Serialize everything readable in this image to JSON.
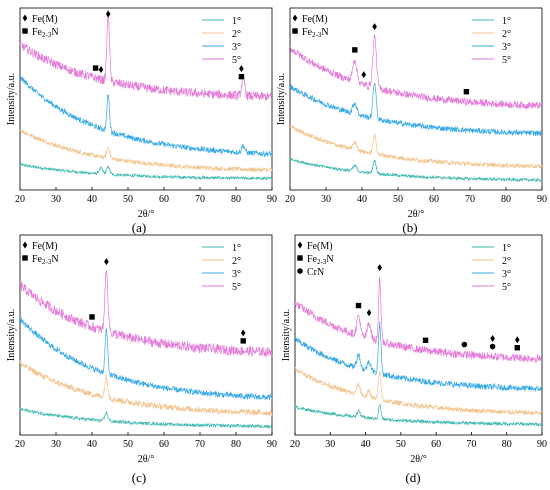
{
  "figure": {
    "subplot_labels": [
      "(a)",
      "(b)",
      "(c)",
      "(d)"
    ]
  },
  "legend_markers": {
    "fe_m": "Fe(M)",
    "fe23n_main": "Fe",
    "fe23n_sub": "2-3",
    "fe23n_tail": "N",
    "crn": "CrN"
  },
  "series_colors": {
    "1°": "#3fb8b0",
    "2°": "#f2c38c",
    "3°": "#35a8e6",
    "5°": "#e47ad8"
  },
  "marker_color": "#000000",
  "chart_data": [
    {
      "type": "line",
      "title": "",
      "subplot": "(a)",
      "xlabel": "2θ/°",
      "ylabel": "Intensity/a.u.",
      "xlim": [
        20,
        90
      ],
      "xticks": [
        20,
        30,
        40,
        50,
        60,
        70,
        80,
        90
      ],
      "grid": false,
      "legend_position": "top-right",
      "phase_legend": [
        "Fe(M)",
        "Fe2-3N"
      ],
      "peak_markers": [
        {
          "x": 41,
          "phase": "Fe2-3N"
        },
        {
          "x": 42.5,
          "phase": "Fe(M)"
        },
        {
          "x": 44.5,
          "phase": "Fe(M)"
        },
        {
          "x": 81.5,
          "phase": "Fe2-3N"
        },
        {
          "x": 81.5,
          "phase": "Fe(M)"
        }
      ],
      "series": [
        {
          "name": "1°",
          "baseline": [
            0.14,
            0.06
          ],
          "noise": 0.008,
          "peaks": [
            [
              42.5,
              0.03,
              0.7
            ],
            [
              44.5,
              0.04,
              0.6
            ]
          ]
        },
        {
          "name": "2°",
          "baseline": [
            0.33,
            0.1
          ],
          "noise": 0.012,
          "peaks": [
            [
              44.5,
              0.06,
              0.6
            ]
          ]
        },
        {
          "name": "3°",
          "baseline": [
            0.62,
            0.18
          ],
          "noise": 0.015,
          "peaks": [
            [
              44.5,
              0.2,
              0.5
            ],
            [
              82,
              0.04,
              0.6
            ]
          ]
        },
        {
          "name": "5°",
          "baseline": [
            0.8,
            0.5
          ],
          "noise": 0.025,
          "peaks": [
            [
              44.5,
              0.38,
              0.5
            ],
            [
              82,
              0.1,
              0.6
            ]
          ]
        }
      ]
    },
    {
      "type": "line",
      "title": "",
      "subplot": "(b)",
      "xlabel": "2θ/°",
      "ylabel": "Intensity/a.u.",
      "xlim": [
        20,
        90
      ],
      "xticks": [
        20,
        30,
        40,
        50,
        60,
        70,
        80,
        90
      ],
      "grid": false,
      "legend_position": "top-right",
      "phase_legend": [
        "Fe(M)",
        "Fe2-3N"
      ],
      "peak_markers": [
        {
          "x": 38,
          "phase": "Fe2-3N"
        },
        {
          "x": 40.5,
          "phase": "Fe(M)"
        },
        {
          "x": 43.5,
          "phase": "Fe(M)"
        },
        {
          "x": 69,
          "phase": "Fe2-3N"
        }
      ],
      "series": [
        {
          "name": "1°",
          "baseline": [
            0.17,
            0.05
          ],
          "noise": 0.008,
          "peaks": [
            [
              38,
              0.03,
              0.8
            ],
            [
              43.5,
              0.07,
              0.6
            ]
          ]
        },
        {
          "name": "2°",
          "baseline": [
            0.35,
            0.12
          ],
          "noise": 0.012,
          "peaks": [
            [
              38,
              0.04,
              0.8
            ],
            [
              43.5,
              0.1,
              0.6
            ]
          ]
        },
        {
          "name": "3°",
          "baseline": [
            0.57,
            0.3
          ],
          "noise": 0.015,
          "peaks": [
            [
              38,
              0.06,
              0.8
            ],
            [
              43.5,
              0.2,
              0.6
            ]
          ]
        },
        {
          "name": "5°",
          "baseline": [
            0.78,
            0.45
          ],
          "noise": 0.02,
          "peaks": [
            [
              38,
              0.12,
              0.8
            ],
            [
              43.5,
              0.28,
              0.7
            ]
          ]
        }
      ]
    },
    {
      "type": "line",
      "title": "",
      "subplot": "(c)",
      "xlabel": "2θ/°",
      "ylabel": "Intensity/a.u.",
      "xlim": [
        20,
        90
      ],
      "xticks": [
        20,
        30,
        40,
        50,
        60,
        70,
        80,
        90
      ],
      "grid": false,
      "legend_position": "top-right",
      "phase_legend": [
        "Fe(M)",
        "Fe2-3N"
      ],
      "peak_markers": [
        {
          "x": 40,
          "phase": "Fe2-3N"
        },
        {
          "x": 44,
          "phase": "Fe(M)"
        },
        {
          "x": 82,
          "phase": "Fe2-3N"
        },
        {
          "x": 82,
          "phase": "Fe(M)"
        }
      ],
      "series": [
        {
          "name": "1°",
          "baseline": [
            0.13,
            0.04
          ],
          "noise": 0.008,
          "peaks": [
            [
              44,
              0.04,
              0.6
            ]
          ]
        },
        {
          "name": "2°",
          "baseline": [
            0.36,
            0.1
          ],
          "noise": 0.015,
          "peaks": [
            [
              44,
              0.1,
              0.6
            ]
          ]
        },
        {
          "name": "3°",
          "baseline": [
            0.58,
            0.17
          ],
          "noise": 0.015,
          "peaks": [
            [
              44,
              0.22,
              0.5
            ]
          ]
        },
        {
          "name": "5°",
          "baseline": [
            0.75,
            0.4
          ],
          "noise": 0.025,
          "peaks": [
            [
              44,
              0.3,
              0.6
            ]
          ]
        }
      ]
    },
    {
      "type": "line",
      "title": "",
      "subplot": "(d)",
      "xlabel": "2θ/°",
      "ylabel": "Intensity/a.u.",
      "xlim": [
        20,
        90
      ],
      "xticks": [
        20,
        30,
        40,
        50,
        60,
        70,
        80,
        90
      ],
      "grid": false,
      "legend_position": "top-right",
      "phase_legend": [
        "Fe(M)",
        "Fe2-3N",
        "CrN"
      ],
      "peak_markers": [
        {
          "x": 38,
          "phase": "Fe2-3N"
        },
        {
          "x": 41,
          "phase": "Fe(M)"
        },
        {
          "x": 44,
          "phase": "Fe(M)"
        },
        {
          "x": 57,
          "phase": "Fe2-3N"
        },
        {
          "x": 68,
          "phase": "CrN"
        },
        {
          "x": 76,
          "phase": "CrN"
        },
        {
          "x": 76,
          "phase": "Fe(M)"
        },
        {
          "x": 83,
          "phase": "Fe2-3N"
        },
        {
          "x": 83,
          "phase": "Fe(M)"
        }
      ],
      "series": [
        {
          "name": "1°",
          "baseline": [
            0.14,
            0.05
          ],
          "noise": 0.008,
          "peaks": [
            [
              38,
              0.03,
              0.7
            ],
            [
              44,
              0.07,
              0.5
            ]
          ]
        },
        {
          "name": "2°",
          "baseline": [
            0.33,
            0.1
          ],
          "noise": 0.012,
          "peaks": [
            [
              38,
              0.05,
              0.7
            ],
            [
              41,
              0.03,
              0.7
            ],
            [
              44,
              0.14,
              0.5
            ]
          ]
        },
        {
          "name": "3°",
          "baseline": [
            0.48,
            0.22
          ],
          "noise": 0.015,
          "peaks": [
            [
              38,
              0.07,
              0.7
            ],
            [
              41,
              0.05,
              0.7
            ],
            [
              44,
              0.25,
              0.5
            ]
          ]
        },
        {
          "name": "5°",
          "baseline": [
            0.66,
            0.37
          ],
          "noise": 0.02,
          "peaks": [
            [
              38,
              0.1,
              0.7
            ],
            [
              41,
              0.08,
              0.7
            ],
            [
              44,
              0.32,
              0.45
            ]
          ]
        }
      ]
    }
  ]
}
